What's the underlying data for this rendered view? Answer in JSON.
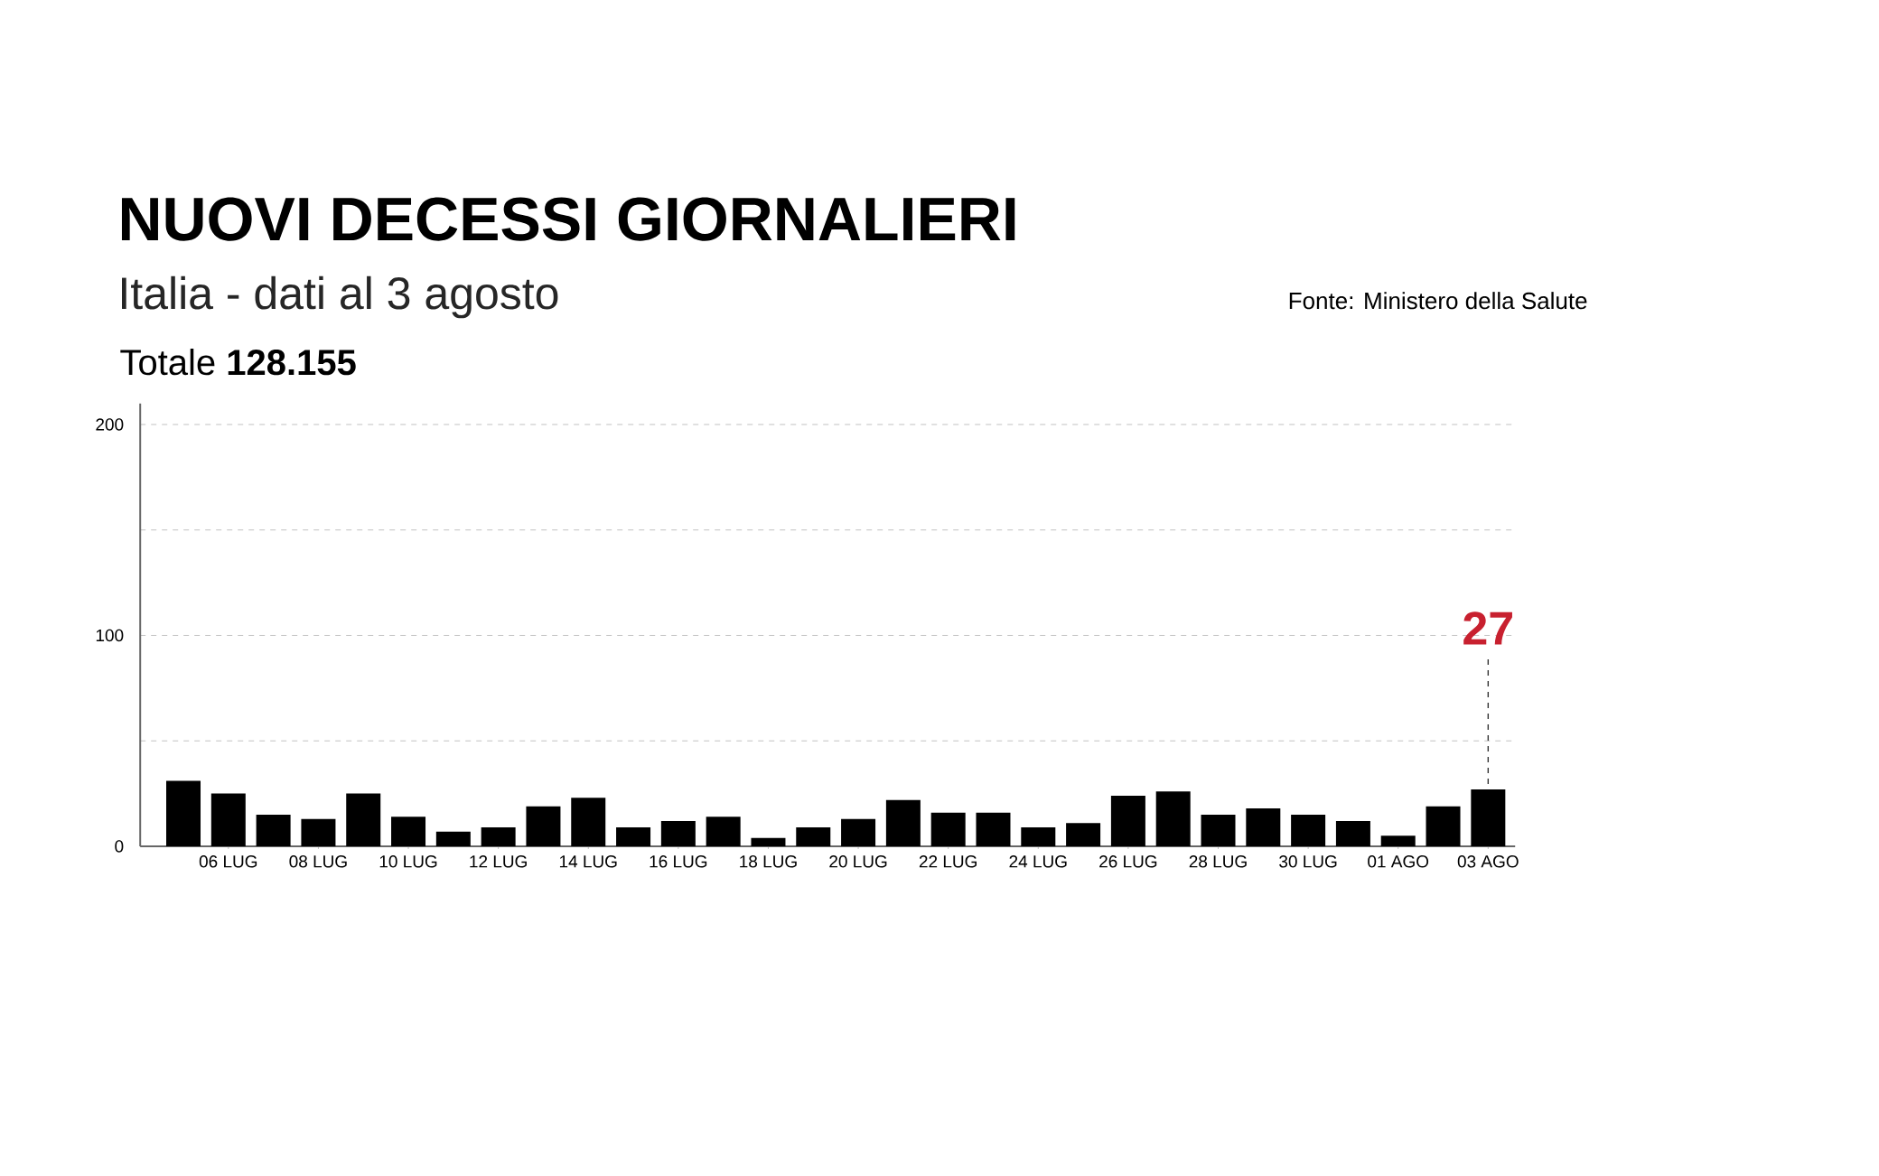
{
  "chart_data": {
    "type": "bar",
    "title": "NUOVI DECESSI GIORNALIERI",
    "subtitle": "Italia - dati al 3 agosto",
    "annotations": [
      "Totale **128.155**",
      "Fonte: Ministero della Salute"
    ],
    "categories": [
      null,
      "06 LUG",
      null,
      "08 LUG",
      null,
      "10 LUG",
      null,
      "12 LUG",
      null,
      "14 LUG",
      null,
      "16 LUG",
      null,
      "18 LUG",
      null,
      "20 LUG",
      null,
      "22 LUG",
      null,
      "24 LUG",
      null,
      "26 LUG",
      null,
      "28 LUG",
      null,
      "30 LUG",
      null,
      "01 AGO",
      null,
      "03 AGO"
    ],
    "values": [
      31,
      25,
      15,
      13,
      25,
      14,
      7,
      9,
      19,
      23,
      9,
      12,
      14,
      4,
      9,
      13,
      22,
      16,
      16,
      9,
      11,
      24,
      26,
      15,
      18,
      15,
      12,
      5,
      19,
      27
    ],
    "value_labels": [
      null,
      null,
      null,
      null,
      null,
      null,
      null,
      null,
      null,
      null,
      null,
      null,
      null,
      null,
      null,
      null,
      null,
      null,
      null,
      null,
      null,
      null,
      null,
      null,
      null,
      null,
      null,
      null,
      null,
      "27"
    ],
    "color": "#000000",
    "ylim": [
      0,
      210
    ],
    "yticks": [
      0,
      {
        "value": 50,
        "label": null
      },
      100,
      {
        "value": 150,
        "label": null
      },
      200
    ],
    "grid": "y"
  }
}
